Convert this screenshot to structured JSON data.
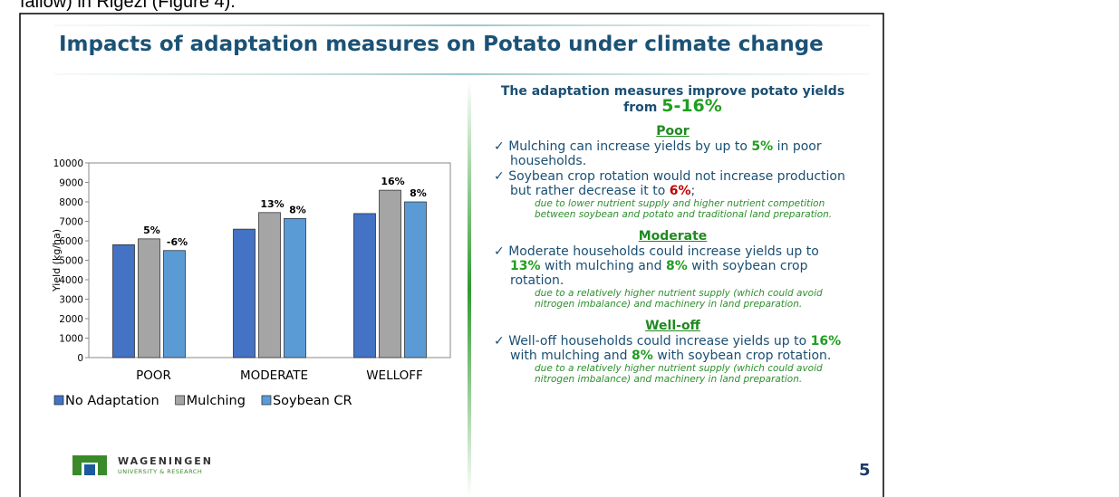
{
  "page_top_text": "fallow) in Rigezi (Figure 4).",
  "slide_title": "Impacts of adaptation measures on Potato under climate change",
  "heading_line1": "The adaptation measures improve potato yields",
  "heading_from": "from ",
  "heading_range": "5-16%",
  "sections": [
    {
      "title": "Poor",
      "bullets": [
        {
          "segments": [
            "Mulching can increase yields by up to ",
            {
              "text": "5%",
              "emph": "green"
            },
            " in poor households."
          ]
        },
        {
          "segments": [
            "Soybean crop rotation would not increase production but rather decrease it to ",
            {
              "text": "6%",
              "emph": "red"
            },
            ";"
          ],
          "note": "due to lower nutrient supply and higher nutrient competition between soybean and potato and traditional land preparation."
        }
      ]
    },
    {
      "title": "Moderate",
      "bullets": [
        {
          "segments": [
            "Moderate households could increase yields up to ",
            {
              "text": "13%",
              "emph": "green"
            },
            " with mulching and ",
            {
              "text": "8%",
              "emph": "green"
            },
            " with soybean crop rotation."
          ],
          "note": "due to a relatively higher nutrient supply (which could avoid nitrogen imbalance) and machinery in land preparation."
        }
      ]
    },
    {
      "title": "Well-off",
      "bullets": [
        {
          "segments": [
            "Well-off households could increase yields up to ",
            {
              "text": "16%",
              "emph": "green"
            },
            " with mulching and ",
            {
              "text": "8%",
              "emph": "green"
            },
            " with soybean crop rotation."
          ],
          "note": "due to a relatively higher nutrient supply (which could avoid nitrogen imbalance) and machinery in land preparation."
        }
      ]
    }
  ],
  "logo_name": "WAGENINGEN",
  "logo_sub": "UNIVERSITY & RESEARCH",
  "page_number": "5",
  "chart_data": {
    "type": "bar",
    "y_label": "Yield (kg/ha)",
    "categories": [
      "POOR",
      "MODERATE",
      "WELLOFF"
    ],
    "series": [
      {
        "name": "No Adaptation",
        "color": "#4472c4",
        "values": [
          5800,
          6600,
          7400
        ],
        "value_labels": [
          null,
          null,
          null
        ]
      },
      {
        "name": "Mulching",
        "color": "#a5a5a5",
        "values": [
          6100,
          7450,
          8600
        ],
        "value_labels": [
          "5%",
          "13%",
          "16%"
        ]
      },
      {
        "name": "Soybean CR",
        "color": "#5b9bd5",
        "values": [
          5500,
          7150,
          8000
        ],
        "value_labels": [
          "-6%",
          "8%",
          "8%"
        ]
      }
    ],
    "ylim": [
      0,
      10000
    ],
    "yticks": [
      0,
      1000,
      2000,
      3000,
      4000,
      5000,
      6000,
      7000,
      8000,
      9000,
      10000
    ],
    "legend": "bottom"
  }
}
